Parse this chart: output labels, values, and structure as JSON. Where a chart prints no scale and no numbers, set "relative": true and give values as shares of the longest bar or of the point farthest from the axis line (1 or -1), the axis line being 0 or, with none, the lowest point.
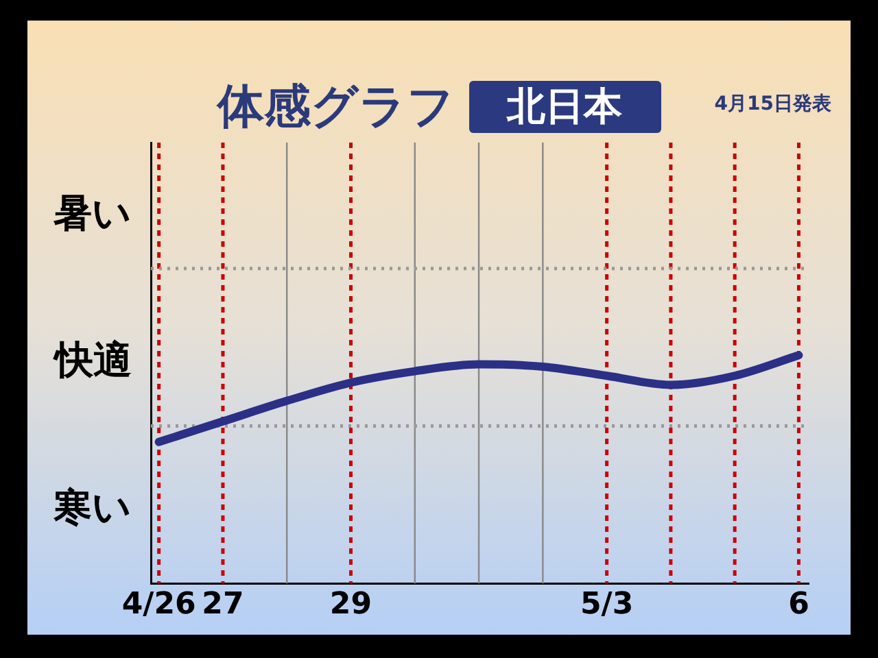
{
  "chart_data": {
    "type": "line",
    "title": "体感グラフ",
    "subtitle": "北日本",
    "relative": true,
    "annotations": [
      "4月15日発表",
      "暑い",
      "快適",
      "寒い"
    ],
    "x": [
      "--04-26",
      "--04-27",
      "--04-28",
      "--04-29",
      "--04-30",
      "--05-01",
      "--05-02",
      "--05-03",
      "--05-04",
      "--05-05",
      "--05-06"
    ],
    "series": [
      {
        "color": "#2b2f86",
        "values": [
          0.62,
          0.71,
          0.8,
          0.88,
          0.93,
          0.96,
          0.95,
          0.91,
          0.87,
          0.91,
          1
        ]
      }
    ],
    "xlim": [
      "--04-25T21:00",
      "--05-06T04:00"
    ],
    "xticks": [
      {
        "value": "--04-26",
        "label": "4/26"
      },
      {
        "value": "--04-27",
        "label": "27"
      },
      {
        "value": "--04-28",
        "label": null
      },
      {
        "value": "--04-29",
        "label": "29"
      },
      {
        "value": "--04-30",
        "label": null
      },
      {
        "value": "--05-01",
        "label": null
      },
      {
        "value": "--05-02",
        "label": null
      },
      {
        "value": "--05-03",
        "label": "5/3"
      },
      {
        "value": "--05-04",
        "label": null
      },
      {
        "value": "--05-05",
        "label": null
      },
      {
        "value": "--05-06",
        "label": "6"
      }
    ],
    "ref_lines": [
      {
        "axis": "x",
        "value": "--04-26",
        "color": "#cc0000",
        "line_style": "dotted"
      },
      {
        "axis": "x",
        "value": "--04-27",
        "color": "#cc0000",
        "line_style": "dotted"
      },
      {
        "axis": "x",
        "value": "--04-28",
        "color": "#888888",
        "line_style": "solid"
      },
      {
        "axis": "x",
        "value": "--04-30",
        "color": "#888888",
        "line_style": "solid"
      },
      {
        "axis": "x",
        "value": "--05-01",
        "color": "#888888",
        "line_style": "solid"
      },
      {
        "axis": "x",
        "value": "--05-02",
        "color": "#888888",
        "line_style": "solid"
      },
      {
        "axis": "x",
        "value": "--04-29",
        "color": "#cc0000",
        "line_style": "dotted"
      },
      {
        "axis": "x",
        "value": "--05-03",
        "color": "#cc0000",
        "line_style": "dotted"
      },
      {
        "axis": "x",
        "value": "--05-04",
        "color": "#cc0000",
        "line_style": "dotted"
      },
      {
        "axis": "x",
        "value": "--05-05",
        "color": "#cc0000",
        "line_style": "dotted"
      },
      {
        "axis": "x",
        "value": "--05-06",
        "color": "#cc0000",
        "line_style": "dotted"
      },
      {
        "axis": "y",
        "value": 0.69,
        "color": "#999999",
        "line_style": "dotted"
      },
      {
        "axis": "y",
        "value": 1.38,
        "color": "#999999",
        "line_style": "dotted"
      }
    ],
    "legend": false,
    "marker": "none",
    "line_style": "solid"
  }
}
